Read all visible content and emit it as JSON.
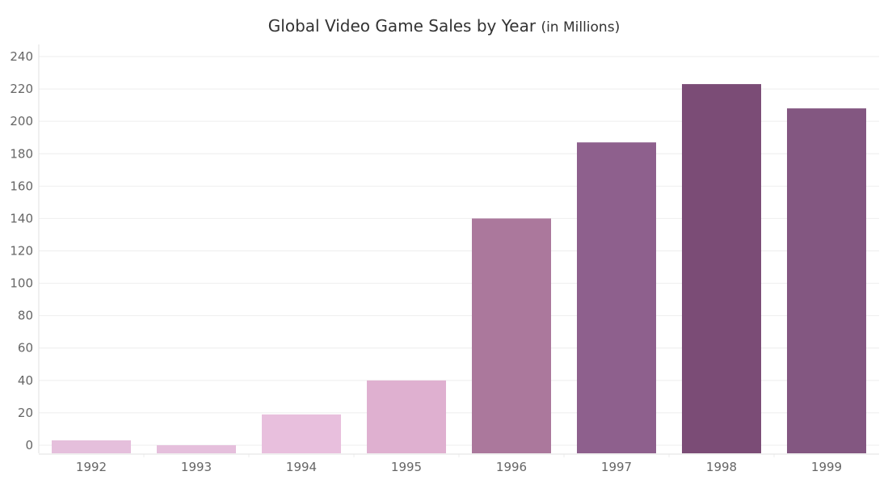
{
  "chart_data": {
    "type": "bar",
    "title": "Global Video Game Sales by Year",
    "title_suffix": "(in Millions)",
    "xlabel": "",
    "ylabel": "",
    "categories": [
      "1992",
      "1993",
      "1994",
      "1995",
      "1996",
      "1997",
      "1998",
      "1999"
    ],
    "values": [
      3,
      0,
      19,
      40,
      140,
      187,
      223,
      208
    ],
    "colors": [
      "#e5bfdc",
      "#e5bfdc",
      "#e8bfdd",
      "#dfb0d0",
      "#ab789c",
      "#8e608d",
      "#7b4c76",
      "#835781"
    ],
    "ylim": [
      -5,
      242
    ],
    "yticks": [
      0,
      20,
      40,
      60,
      80,
      100,
      120,
      140,
      160,
      180,
      200,
      220,
      240
    ],
    "grid": true,
    "gridColor": "#eeeeee",
    "axisColor": "#e2e2e2"
  }
}
